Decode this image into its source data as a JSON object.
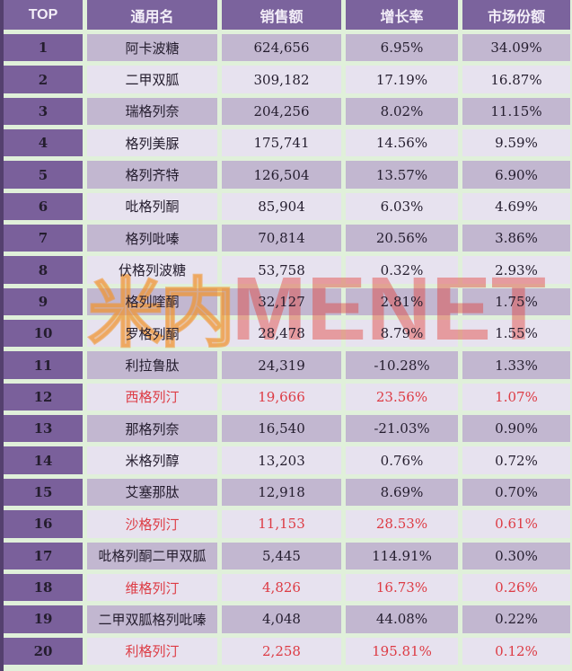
{
  "chart_data": {
    "type": "table",
    "columns": [
      "TOP",
      "通用名",
      "销售额",
      "增长率",
      "市场份额"
    ],
    "rows": [
      {
        "top": "1",
        "name": "阿卡波糖",
        "sales": "624,656",
        "growth": "6.95%",
        "share": "34.09%",
        "highlight": false
      },
      {
        "top": "2",
        "name": "二甲双胍",
        "sales": "309,182",
        "growth": "17.19%",
        "share": "16.87%",
        "highlight": false
      },
      {
        "top": "3",
        "name": "瑞格列奈",
        "sales": "204,256",
        "growth": "8.02%",
        "share": "11.15%",
        "highlight": false
      },
      {
        "top": "4",
        "name": "格列美脲",
        "sales": "175,741",
        "growth": "14.56%",
        "share": "9.59%",
        "highlight": false
      },
      {
        "top": "5",
        "name": "格列齐特",
        "sales": "126,504",
        "growth": "13.57%",
        "share": "6.90%",
        "highlight": false
      },
      {
        "top": "6",
        "name": "吡格列酮",
        "sales": "85,904",
        "growth": "6.03%",
        "share": "4.69%",
        "highlight": false
      },
      {
        "top": "7",
        "name": "格列吡嗪",
        "sales": "70,814",
        "growth": "20.56%",
        "share": "3.86%",
        "highlight": false
      },
      {
        "top": "8",
        "name": "伏格列波糖",
        "sales": "53,758",
        "growth": "0.32%",
        "share": "2.93%",
        "highlight": false
      },
      {
        "top": "9",
        "name": "格列喹酮",
        "sales": "32,127",
        "growth": "2.81%",
        "share": "1.75%",
        "highlight": false
      },
      {
        "top": "10",
        "name": "罗格列酮",
        "sales": "28,478",
        "growth": "8.79%",
        "share": "1.55%",
        "highlight": false
      },
      {
        "top": "11",
        "name": "利拉鲁肽",
        "sales": "24,319",
        "growth": "-10.28%",
        "share": "1.33%",
        "highlight": false
      },
      {
        "top": "12",
        "name": "西格列汀",
        "sales": "19,666",
        "growth": "23.56%",
        "share": "1.07%",
        "highlight": true
      },
      {
        "top": "13",
        "name": "那格列奈",
        "sales": "16,540",
        "growth": "-21.03%",
        "share": "0.90%",
        "highlight": false
      },
      {
        "top": "14",
        "name": "米格列醇",
        "sales": "13,203",
        "growth": "0.76%",
        "share": "0.72%",
        "highlight": false
      },
      {
        "top": "15",
        "name": "艾塞那肽",
        "sales": "12,918",
        "growth": "8.69%",
        "share": "0.70%",
        "highlight": false
      },
      {
        "top": "16",
        "name": "沙格列汀",
        "sales": "11,153",
        "growth": "28.53%",
        "share": "0.61%",
        "highlight": true
      },
      {
        "top": "17",
        "name": "吡格列酮二甲双胍",
        "sales": "5,445",
        "growth": "114.91%",
        "share": "0.30%",
        "highlight": false
      },
      {
        "top": "18",
        "name": "维格列汀",
        "sales": "4,826",
        "growth": "16.73%",
        "share": "0.26%",
        "highlight": true
      },
      {
        "top": "19",
        "name": "二甲双胍格列吡嗪",
        "sales": "4,048",
        "growth": "44.08%",
        "share": "0.22%",
        "highlight": false
      },
      {
        "top": "20",
        "name": "利格列汀",
        "sales": "2,258",
        "growth": "195.81%",
        "share": "0.12%",
        "highlight": true
      }
    ]
  },
  "watermark": {
    "cn": "米内",
    "en": "MENET"
  },
  "colors": {
    "header_purple": "#7b639d",
    "top_cell_purple": "#7a609b",
    "row_odd": "#c2b7d0",
    "row_even": "#e7e2ef",
    "separator_green": "#e0f0da",
    "left_border": "#54406e",
    "highlight_red": "#dd3b44",
    "text_dark": "#241d2e",
    "watermark_orange": "#f0932d",
    "watermark_red": "#e23a30"
  }
}
